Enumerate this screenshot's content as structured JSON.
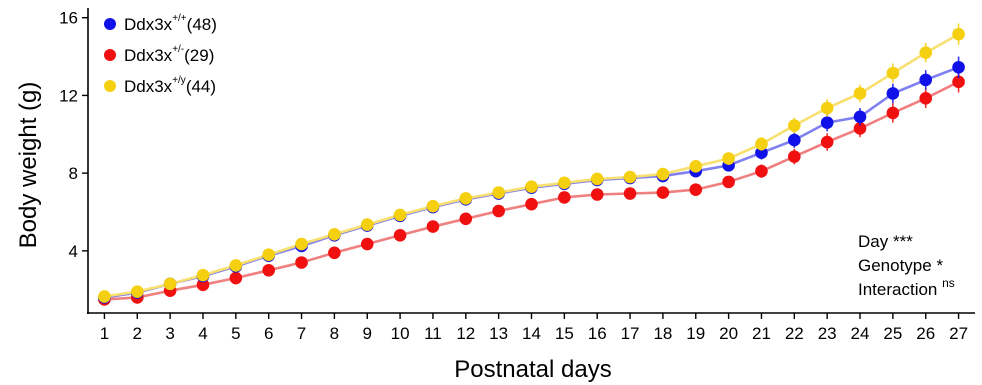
{
  "chart_data": {
    "type": "line",
    "title": "",
    "xlabel": "Postnatal days",
    "ylabel": "Body weight (g)",
    "xlim": [
      0.5,
      27.5
    ],
    "ylim": [
      0.8,
      16.5
    ],
    "x_ticks": [
      1,
      2,
      3,
      4,
      5,
      6,
      7,
      8,
      9,
      10,
      11,
      12,
      13,
      14,
      15,
      16,
      17,
      18,
      19,
      20,
      21,
      22,
      23,
      24,
      25,
      26,
      27
    ],
    "y_ticks": [
      4,
      8,
      12,
      16
    ],
    "grid": false,
    "legend_position": "top-left",
    "x": [
      1,
      2,
      3,
      4,
      5,
      6,
      7,
      8,
      9,
      10,
      11,
      12,
      13,
      14,
      15,
      16,
      17,
      18,
      19,
      20,
      21,
      22,
      23,
      24,
      25,
      26,
      27
    ],
    "series": [
      {
        "name": "Ddx3x",
        "superscript": "+/+",
        "count": "(48)",
        "color": "#1010e8",
        "line_color": "#8080f0",
        "values": [
          1.6,
          1.85,
          2.3,
          2.7,
          3.2,
          3.75,
          4.25,
          4.8,
          5.3,
          5.8,
          6.25,
          6.65,
          6.95,
          7.25,
          7.45,
          7.65,
          7.75,
          7.85,
          8.1,
          8.4,
          9.05,
          9.7,
          10.6,
          10.9,
          12.1,
          12.8,
          13.45
        ],
        "errors": [
          0.15,
          0.15,
          0.15,
          0.15,
          0.15,
          0.15,
          0.15,
          0.2,
          0.2,
          0.2,
          0.2,
          0.2,
          0.2,
          0.2,
          0.2,
          0.2,
          0.2,
          0.2,
          0.25,
          0.3,
          0.35,
          0.4,
          0.45,
          0.45,
          0.5,
          0.5,
          0.55
        ]
      },
      {
        "name": "Ddx3x",
        "superscript": "+/-",
        "count": "(29)",
        "color": "#f01010",
        "line_color": "#f08080",
        "values": [
          1.5,
          1.6,
          1.95,
          2.25,
          2.6,
          3.0,
          3.4,
          3.9,
          4.35,
          4.8,
          5.25,
          5.65,
          6.05,
          6.4,
          6.75,
          6.9,
          6.95,
          7.0,
          7.15,
          7.55,
          8.1,
          8.85,
          9.6,
          10.3,
          11.1,
          11.85,
          12.7
        ],
        "errors": [
          0.15,
          0.15,
          0.15,
          0.15,
          0.15,
          0.15,
          0.15,
          0.2,
          0.2,
          0.2,
          0.2,
          0.2,
          0.2,
          0.2,
          0.2,
          0.2,
          0.2,
          0.2,
          0.25,
          0.3,
          0.35,
          0.4,
          0.45,
          0.45,
          0.5,
          0.5,
          0.55
        ]
      },
      {
        "name": "Ddx3x",
        "superscript": "+/y",
        "count": "(44)",
        "color": "#f5d010",
        "line_color": "#f8e070",
        "values": [
          1.65,
          1.9,
          2.3,
          2.75,
          3.25,
          3.8,
          4.35,
          4.85,
          5.35,
          5.85,
          6.3,
          6.7,
          7.0,
          7.3,
          7.5,
          7.7,
          7.8,
          7.95,
          8.35,
          8.75,
          9.5,
          10.45,
          11.35,
          12.1,
          13.15,
          14.2,
          15.15
        ],
        "errors": [
          0.15,
          0.15,
          0.15,
          0.15,
          0.15,
          0.15,
          0.15,
          0.2,
          0.2,
          0.2,
          0.2,
          0.2,
          0.2,
          0.2,
          0.2,
          0.2,
          0.2,
          0.2,
          0.25,
          0.3,
          0.35,
          0.4,
          0.45,
          0.45,
          0.5,
          0.5,
          0.55
        ]
      }
    ],
    "annotations": [
      {
        "label": "Day",
        "marker": "***"
      },
      {
        "label": "Genotype",
        "marker": "*"
      },
      {
        "label": "Interaction",
        "marker": "ns"
      }
    ]
  }
}
